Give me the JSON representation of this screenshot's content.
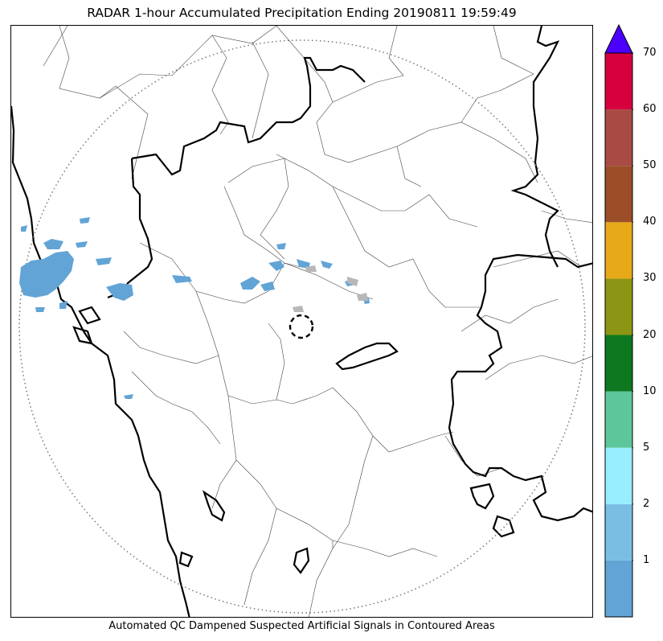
{
  "title": "RADAR 1-hour Accumulated Precipitation Ending 20190811 19:59:49",
  "caption": "Automated QC Dampened Suspected Artificial Signals in Contoured Areas",
  "colorbar": {
    "levels": [
      0,
      1,
      2,
      5,
      10,
      20,
      30,
      40,
      50,
      60,
      70
    ],
    "colors": [
      "#62a4d6",
      "#79bfe3",
      "#98edff",
      "#5ec69b",
      "#0e7820",
      "#8c9614",
      "#e8a919",
      "#9c4e29",
      "#a84b45",
      "#d6003f"
    ],
    "over_color": "#4c00ff",
    "tick_labels": [
      "1",
      "2",
      "5",
      "10",
      "20",
      "30",
      "40",
      "50",
      "60",
      "70"
    ]
  },
  "map": {
    "range_ring": "dotted range circle",
    "radar_site": "dashed circle at radar location",
    "rain_color": "#62a4d6",
    "artifact_color": "#b8b8b8"
  }
}
